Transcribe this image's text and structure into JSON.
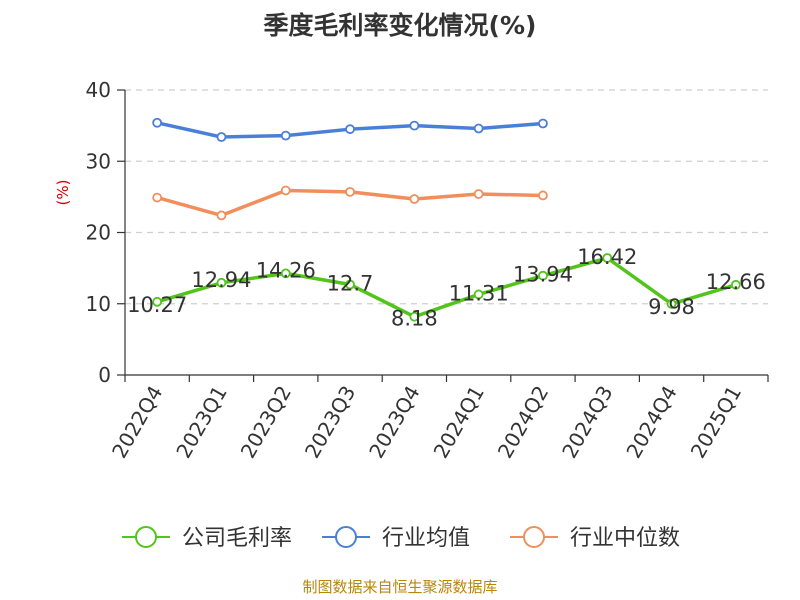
{
  "chart_data": {
    "type": "line",
    "title": "季度毛利率变化情况(%)",
    "ylabel": "(%)",
    "xlabel": "",
    "ylim": [
      0,
      40
    ],
    "yticks": [
      0,
      10,
      20,
      30,
      40
    ],
    "grid": true,
    "legend_position": "bottom",
    "categories": [
      "2022Q4",
      "2023Q1",
      "2023Q2",
      "2023Q3",
      "2023Q4",
      "2024Q1",
      "2024Q2",
      "2024Q3",
      "2024Q4",
      "2025Q1"
    ],
    "series": [
      {
        "name": "公司毛利率",
        "color": "#52c41a",
        "show_labels": true,
        "values": [
          10.27,
          12.94,
          14.26,
          12.7,
          8.18,
          11.31,
          13.94,
          16.42,
          9.98,
          12.66
        ]
      },
      {
        "name": "行业均值",
        "color": "#4a7fd9",
        "show_labels": false,
        "values": [
          35.4,
          33.4,
          33.6,
          34.5,
          35.0,
          34.6,
          35.3,
          null,
          null,
          null
        ]
      },
      {
        "name": "行业中位数",
        "color": "#f28e5c",
        "show_labels": false,
        "values": [
          24.9,
          22.4,
          25.9,
          25.7,
          24.7,
          25.4,
          25.2,
          null,
          null,
          null
        ]
      }
    ]
  },
  "source_text": "制图数据来自恒生聚源数据库"
}
